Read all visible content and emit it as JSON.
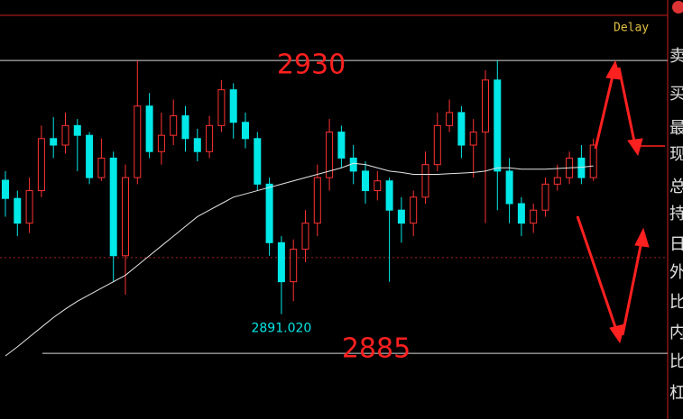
{
  "chart_data": {
    "type": "candlestick",
    "open": [
      2911.6,
      2908.8,
      2905,
      2910,
      2918,
      2917,
      2920,
      2918.5,
      2912,
      2915,
      2900,
      2912,
      2923,
      2916,
      2918.5,
      2921.5,
      2918,
      2916,
      2920,
      2925.5,
      2920.5,
      2918,
      2911,
      2902,
      2896,
      2901,
      2905,
      2912,
      2919,
      2915,
      2913,
      2910,
      2911.5,
      2907,
      2905,
      2909,
      2914,
      2920,
      2922,
      2917,
      2919,
      2927,
      2913,
      2908,
      2905,
      2907,
      2911,
      2912,
      2915,
      2912
    ],
    "high": [
      2913,
      2910,
      2912,
      2920,
      2921.3,
      2922,
      2921,
      2919,
      2918,
      2916,
      2914,
      2930,
      2925,
      2922,
      2924,
      2923,
      2919.5,
      2921.5,
      2927,
      2926.5,
      2922,
      2919,
      2912,
      2903,
      2902.5,
      2907,
      2914,
      2921,
      2920,
      2917,
      2914.5,
      2913,
      2912,
      2909,
      2910,
      2916,
      2922,
      2924,
      2923,
      2921,
      2928.5,
      2930,
      2915,
      2909,
      2908,
      2912,
      2914,
      2916,
      2917,
      2918
    ],
    "low": [
      2906,
      2903,
      2903.5,
      2909,
      2915,
      2915.7,
      2913,
      2911,
      2911.5,
      2896,
      2894,
      2911,
      2915,
      2914,
      2917,
      2916,
      2914.5,
      2915,
      2919,
      2918,
      2916.5,
      2910,
      2900,
      2891.02,
      2893,
      2899,
      2903,
      2910,
      2913.5,
      2911,
      2908,
      2908.5,
      2896,
      2902,
      2903,
      2908,
      2913,
      2919,
      2915,
      2912,
      2905,
      2907,
      2905,
      2903,
      2903.5,
      2906,
      2910,
      2911,
      2911,
      2911.5
    ],
    "close": [
      2908.8,
      2905,
      2910,
      2918,
      2917,
      2920,
      2918.5,
      2912,
      2915,
      2900,
      2912,
      2923,
      2916,
      2918.5,
      2921.5,
      2918,
      2916,
      2920,
      2925.5,
      2920.5,
      2918,
      2911,
      2902,
      2896,
      2901,
      2905,
      2912,
      2919,
      2915,
      2913,
      2910,
      2911.5,
      2907,
      2905,
      2909,
      2914,
      2920,
      2922,
      2917,
      2919,
      2927,
      2913,
      2908,
      2905,
      2907,
      2911,
      2912,
      2915,
      2912,
      2917
    ],
    "up_color": "#ff3232",
    "down_color": "#00e8e8",
    "ma": {
      "color": "#e6e6e6",
      "values": [
        2884.6,
        2886,
        2887.5,
        2889,
        2890.5,
        2891.8,
        2893,
        2894,
        2895,
        2896,
        2897,
        2898.5,
        2900,
        2901.5,
        2903,
        2904.5,
        2906,
        2907,
        2908,
        2909,
        2909.5,
        2910,
        2910.5,
        2911,
        2911.5,
        2912,
        2912.5,
        2913,
        2913.5,
        2914.2,
        2914,
        2913.5,
        2913,
        2912.8,
        2912.5,
        2912.5,
        2912.5,
        2912.6,
        2912.7,
        2912.8,
        2913,
        2913.5,
        2913.5,
        2913.3,
        2913.3,
        2913.3,
        2913.4,
        2913.5,
        2913.6,
        2913.8
      ]
    },
    "ylim": [
      2874.9,
      2939.3
    ],
    "levels": [
      2930,
      2885
    ],
    "ref_line": 2899.7,
    "low_label": "2891.020",
    "status": "Delay",
    "sidebar": [
      "卖",
      "买",
      "最",
      "现",
      "总",
      "持",
      "日",
      "外",
      "比",
      "内",
      "比",
      "杠"
    ]
  }
}
